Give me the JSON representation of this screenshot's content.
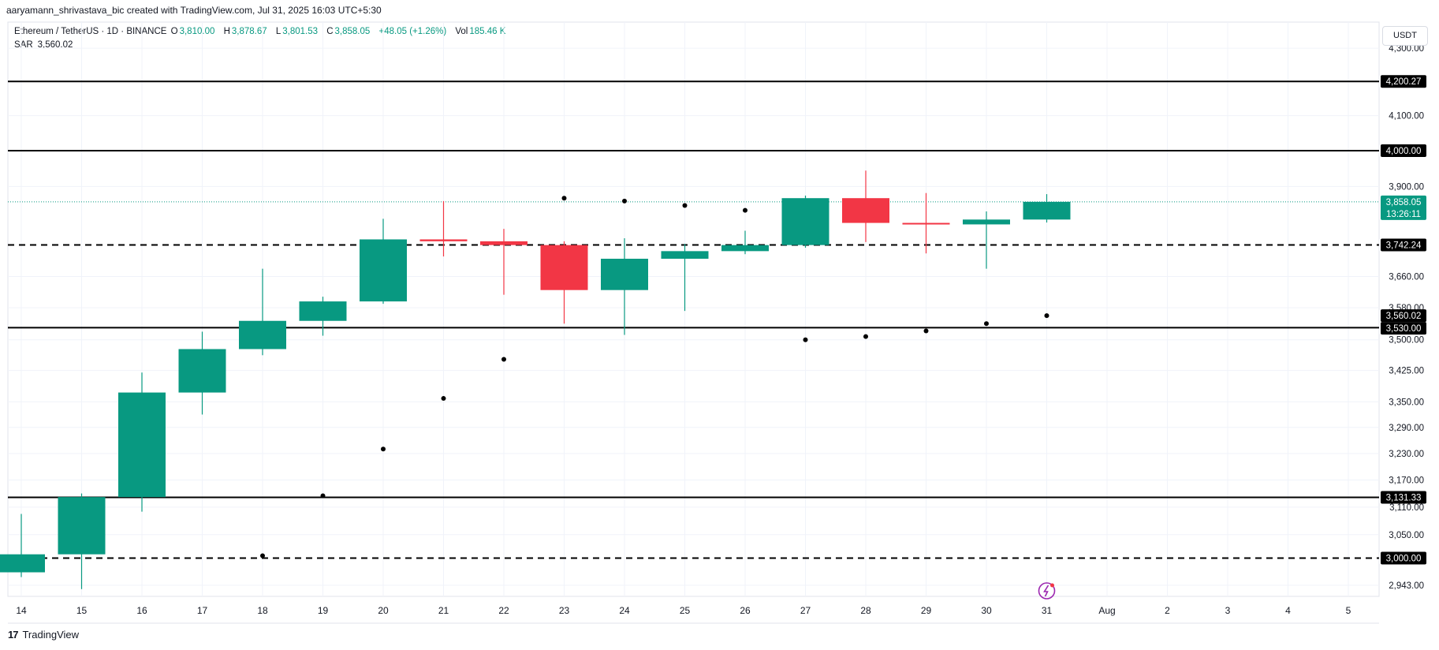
{
  "header": {
    "created_by": "aaryamann_shrivastava_bic created with TradingView.com, Jul 31, 2025 16:03 UTC+5:30"
  },
  "legend": {
    "symbol": "Ethereum / TetherUS · 1D · BINANCE",
    "o_label": "O",
    "o_value": "3,810.00",
    "h_label": "H",
    "h_value": "3,878.67",
    "l_label": "L",
    "l_value": "3,801.53",
    "c_label": "C",
    "c_value": "3,858.05",
    "change": "+48.05 (+1.26%)",
    "vol_label": "Vol",
    "vol_value": "185.46 K"
  },
  "indicator": {
    "name": "SAR",
    "value": "3,560.02"
  },
  "currency_button": "USDT",
  "footer": {
    "brand": "TradingView"
  },
  "colors": {
    "up": "#089981",
    "down": "#f23645",
    "line": "#000000",
    "grid": "#f0f3fa"
  },
  "chart_data": {
    "type": "candlestick",
    "x_ticks": [
      "14",
      "15",
      "16",
      "17",
      "18",
      "19",
      "20",
      "21",
      "22",
      "23",
      "24",
      "25",
      "26",
      "27",
      "28",
      "29",
      "30",
      "31",
      "Aug",
      "2",
      "3",
      "4",
      "5"
    ],
    "y_ticks": [
      "4,300.00",
      "4,100.00",
      "3,900.00",
      "3,660.00",
      "3,580.00",
      "3,500.00",
      "3,425.00",
      "3,350.00",
      "3,290.00",
      "3,230.00",
      "3,170.00",
      "3,110.00",
      "3,050.00",
      "2,943.00"
    ],
    "y_scale": "log",
    "y_range": [
      2920,
      4380
    ],
    "candles": [
      {
        "date": "14",
        "o": 2970,
        "h": 3095,
        "l": 2960,
        "c": 3008
      },
      {
        "date": "15",
        "o": 3008,
        "h": 3140,
        "l": 2935,
        "c": 3132
      },
      {
        "date": "16",
        "o": 3132,
        "h": 3420,
        "l": 3100,
        "c": 3372
      },
      {
        "date": "17",
        "o": 3372,
        "h": 3520,
        "l": 3320,
        "c": 3477
      },
      {
        "date": "18",
        "o": 3477,
        "h": 3680,
        "l": 3462,
        "c": 3547
      },
      {
        "date": "19",
        "o": 3547,
        "h": 3608,
        "l": 3510,
        "c": 3596
      },
      {
        "date": "20",
        "o": 3596,
        "h": 3812,
        "l": 3590,
        "c": 3757
      },
      {
        "date": "21",
        "o": 3757,
        "h": 3860,
        "l": 3712,
        "c": 3752
      },
      {
        "date": "22",
        "o": 3752,
        "h": 3785,
        "l": 3613,
        "c": 3742
      },
      {
        "date": "23",
        "o": 3742,
        "h": 3752,
        "l": 3540,
        "c": 3625
      },
      {
        "date": "24",
        "o": 3625,
        "h": 3760,
        "l": 3512,
        "c": 3706
      },
      {
        "date": "25",
        "o": 3706,
        "h": 3745,
        "l": 3572,
        "c": 3726
      },
      {
        "date": "26",
        "o": 3726,
        "h": 3780,
        "l": 3718,
        "c": 3742
      },
      {
        "date": "27",
        "o": 3742,
        "h": 3875,
        "l": 3735,
        "c": 3868
      },
      {
        "date": "28",
        "o": 3868,
        "h": 3944,
        "l": 3750,
        "c": 3801
      },
      {
        "date": "29",
        "o": 3801,
        "h": 3882,
        "l": 3720,
        "c": 3797
      },
      {
        "date": "30",
        "o": 3797,
        "h": 3832,
        "l": 3680,
        "c": 3810
      },
      {
        "date": "31",
        "o": 3810,
        "h": 3879,
        "l": 3802,
        "c": 3858
      }
    ],
    "sar": [
      {
        "date": "18",
        "v": 3005
      },
      {
        "date": "19",
        "v": 3135
      },
      {
        "date": "20",
        "v": 3240
      },
      {
        "date": "21",
        "v": 3358
      },
      {
        "date": "22",
        "v": 3452
      },
      {
        "date": "23",
        "v": 3868
      },
      {
        "date": "24",
        "v": 3860
      },
      {
        "date": "25",
        "v": 3848
      },
      {
        "date": "26",
        "v": 3835
      },
      {
        "date": "27",
        "v": 3500
      },
      {
        "date": "28",
        "v": 3508
      },
      {
        "date": "29",
        "v": 3522
      },
      {
        "date": "30",
        "v": 3540
      },
      {
        "date": "31",
        "v": 3560
      }
    ],
    "horizontal_lines": [
      {
        "value": 4200.27,
        "label": "4,200.27",
        "style": "solid"
      },
      {
        "value": 4000.0,
        "label": "4,000.00",
        "style": "solid"
      },
      {
        "value": 3742.24,
        "label": "3,742.24",
        "style": "dashed"
      },
      {
        "value": 3530.0,
        "label": "3,530.00",
        "style": "solid"
      },
      {
        "value": 3131.33,
        "label": "3,131.33",
        "style": "solid"
      },
      {
        "value": 3000.0,
        "label": "3,000.00",
        "style": "dashed"
      }
    ],
    "price_tag": {
      "value": 3858.05,
      "label": "3,858.05",
      "countdown": "13:26:11"
    },
    "sar_tag": {
      "value": 3560.02,
      "label": "3,560.02"
    }
  }
}
